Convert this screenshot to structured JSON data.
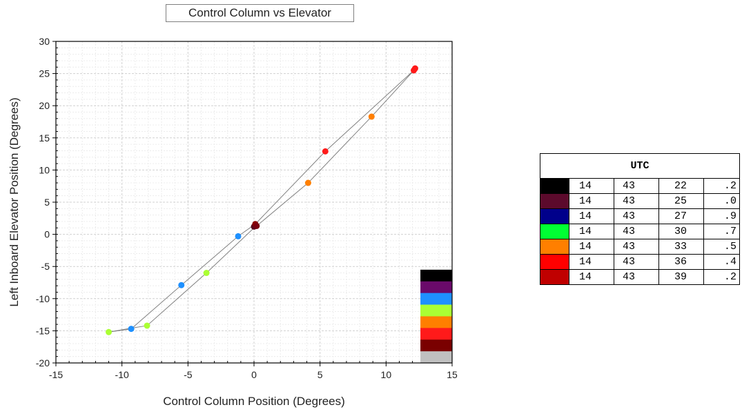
{
  "chart_data": {
    "type": "scatter",
    "title": "Control Column vs Elevator",
    "xlabel": "Control Column Position (Degrees)",
    "ylabel": "Left Inboard Elevator Position (Degrees)",
    "xlim": [
      -15,
      15
    ],
    "ylim": [
      -20,
      30
    ],
    "x_ticks": [
      "-15",
      "-10",
      "-5",
      "0",
      "5",
      "10",
      "15"
    ],
    "y_ticks": [
      "-20",
      "-15",
      "-10",
      "-5",
      "0",
      "5",
      "10",
      "15",
      "20",
      "25",
      "30"
    ],
    "grid": true,
    "line": {
      "color": "#808080",
      "x": [
        -11.0,
        -9.3,
        -8.1,
        -3.6,
        0.0,
        0.2,
        4.1,
        8.9,
        12.2,
        12.1,
        5.4,
        0.1,
        -1.2,
        -5.5,
        -9.3,
        -11.0
      ],
      "y": [
        -15.2,
        -14.6,
        -14.2,
        -6.0,
        1.0,
        1.3,
        8.0,
        18.3,
        25.7,
        25.5,
        12.9,
        1.6,
        -0.3,
        -7.9,
        -14.7,
        -15.2
      ]
    },
    "points": [
      {
        "x": -11.0,
        "y": -15.2,
        "color": "#aaff33"
      },
      {
        "x": -9.3,
        "y": -14.7,
        "color": "#1e90ff"
      },
      {
        "x": -8.1,
        "y": -14.2,
        "color": "#aaff33"
      },
      {
        "x": -5.5,
        "y": -7.9,
        "color": "#1e90ff"
      },
      {
        "x": -3.6,
        "y": -6.0,
        "color": "#aaff33"
      },
      {
        "x": -1.2,
        "y": -0.3,
        "color": "#1e90ff"
      },
      {
        "x": 0.0,
        "y": 1.2,
        "color": "#5a0a1e"
      },
      {
        "x": 0.1,
        "y": 1.6,
        "color": "#8b0000"
      },
      {
        "x": 0.2,
        "y": 1.3,
        "color": "#7a0010"
      },
      {
        "x": 4.1,
        "y": 8.0,
        "color": "#ff7f00"
      },
      {
        "x": 5.4,
        "y": 12.9,
        "color": "#ff1a1a"
      },
      {
        "x": 8.9,
        "y": 18.3,
        "color": "#ff7f00"
      },
      {
        "x": 12.1,
        "y": 25.5,
        "color": "#ff1a1a"
      },
      {
        "x": 12.2,
        "y": 25.8,
        "color": "#ff1a1a"
      }
    ],
    "color_bar": [
      "#000000",
      "#6a0a6a",
      "#1e90ff",
      "#aaff33",
      "#ff7f00",
      "#ff1a1a",
      "#7a0000",
      "#c0c0c0"
    ]
  },
  "utc_table": {
    "header": "UTC",
    "rows": [
      {
        "color": "#000000",
        "cells": [
          "14",
          "43",
          "22",
          ".2"
        ]
      },
      {
        "color": "#5c0a2c",
        "cells": [
          "14",
          "43",
          "25",
          ".0"
        ]
      },
      {
        "color": "#00008b",
        "cells": [
          "14",
          "43",
          "27",
          ".9"
        ]
      },
      {
        "color": "#00ff33",
        "cells": [
          "14",
          "43",
          "30",
          ".7"
        ]
      },
      {
        "color": "#ff7f00",
        "cells": [
          "14",
          "43",
          "33",
          ".5"
        ]
      },
      {
        "color": "#ff0000",
        "cells": [
          "14",
          "43",
          "36",
          ".4"
        ]
      },
      {
        "color": "#c00000",
        "cells": [
          "14",
          "43",
          "39",
          ".2"
        ]
      }
    ]
  }
}
